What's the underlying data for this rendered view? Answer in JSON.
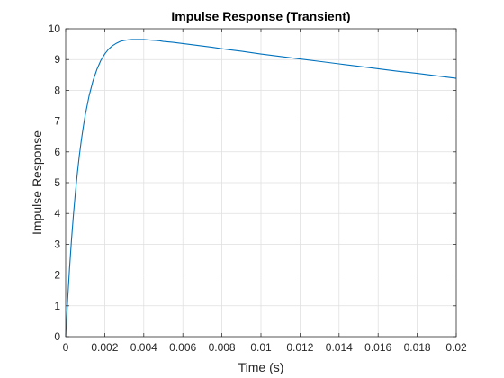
{
  "chart_data": {
    "type": "line",
    "title": "Impulse Response (Transient)",
    "xlabel": "Time (s)",
    "ylabel": "Impulse Response",
    "xlim": [
      0,
      0.02
    ],
    "ylim": [
      0,
      10
    ],
    "grid": true,
    "x_ticks": [
      0,
      0.002,
      0.004,
      0.006,
      0.008,
      0.01,
      0.012,
      0.014,
      0.016,
      0.018,
      0.02
    ],
    "x_tick_labels": [
      "0",
      "0.002",
      "0.004",
      "0.006",
      "0.008",
      "0.01",
      "0.012",
      "0.014",
      "0.016",
      "0.018",
      "0.02"
    ],
    "y_ticks": [
      0,
      1,
      2,
      3,
      4,
      5,
      6,
      7,
      8,
      9,
      10
    ],
    "y_tick_labels": [
      "0",
      "1",
      "2",
      "3",
      "4",
      "5",
      "6",
      "7",
      "8",
      "9",
      "10"
    ],
    "series": [
      {
        "color": "#0072BD",
        "x": [
          0,
          0.0001,
          0.0002,
          0.0003,
          0.0004,
          0.0005,
          0.0006,
          0.0007,
          0.0008,
          0.0009,
          0.001,
          0.0012,
          0.0014,
          0.0016,
          0.0018,
          0.002,
          0.0022,
          0.0024,
          0.0026,
          0.0028,
          0.003,
          0.0032,
          0.0034,
          0.0036,
          0.0038,
          0.004,
          0.0042,
          0.0044,
          0.0046,
          0.0048,
          0.005,
          0.0055,
          0.006,
          0.0065,
          0.007,
          0.0075,
          0.008,
          0.009,
          0.01,
          0.011,
          0.012,
          0.013,
          0.014,
          0.015,
          0.016,
          0.017,
          0.018,
          0.019,
          0.02
        ],
        "y": [
          0,
          1.19,
          2.24,
          3.16,
          3.97,
          4.69,
          5.32,
          5.88,
          6.37,
          6.8,
          7.19,
          7.82,
          8.31,
          8.68,
          8.97,
          9.18,
          9.34,
          9.45,
          9.53,
          9.59,
          9.62,
          9.64,
          9.65,
          9.65,
          9.65,
          9.65,
          9.64,
          9.63,
          9.62,
          9.61,
          9.59,
          9.56,
          9.52,
          9.48,
          9.44,
          9.4,
          9.35,
          9.27,
          9.18,
          9.1,
          9.02,
          8.94,
          8.86,
          8.78,
          8.7,
          8.62,
          8.55,
          8.47,
          8.39
        ]
      }
    ]
  }
}
